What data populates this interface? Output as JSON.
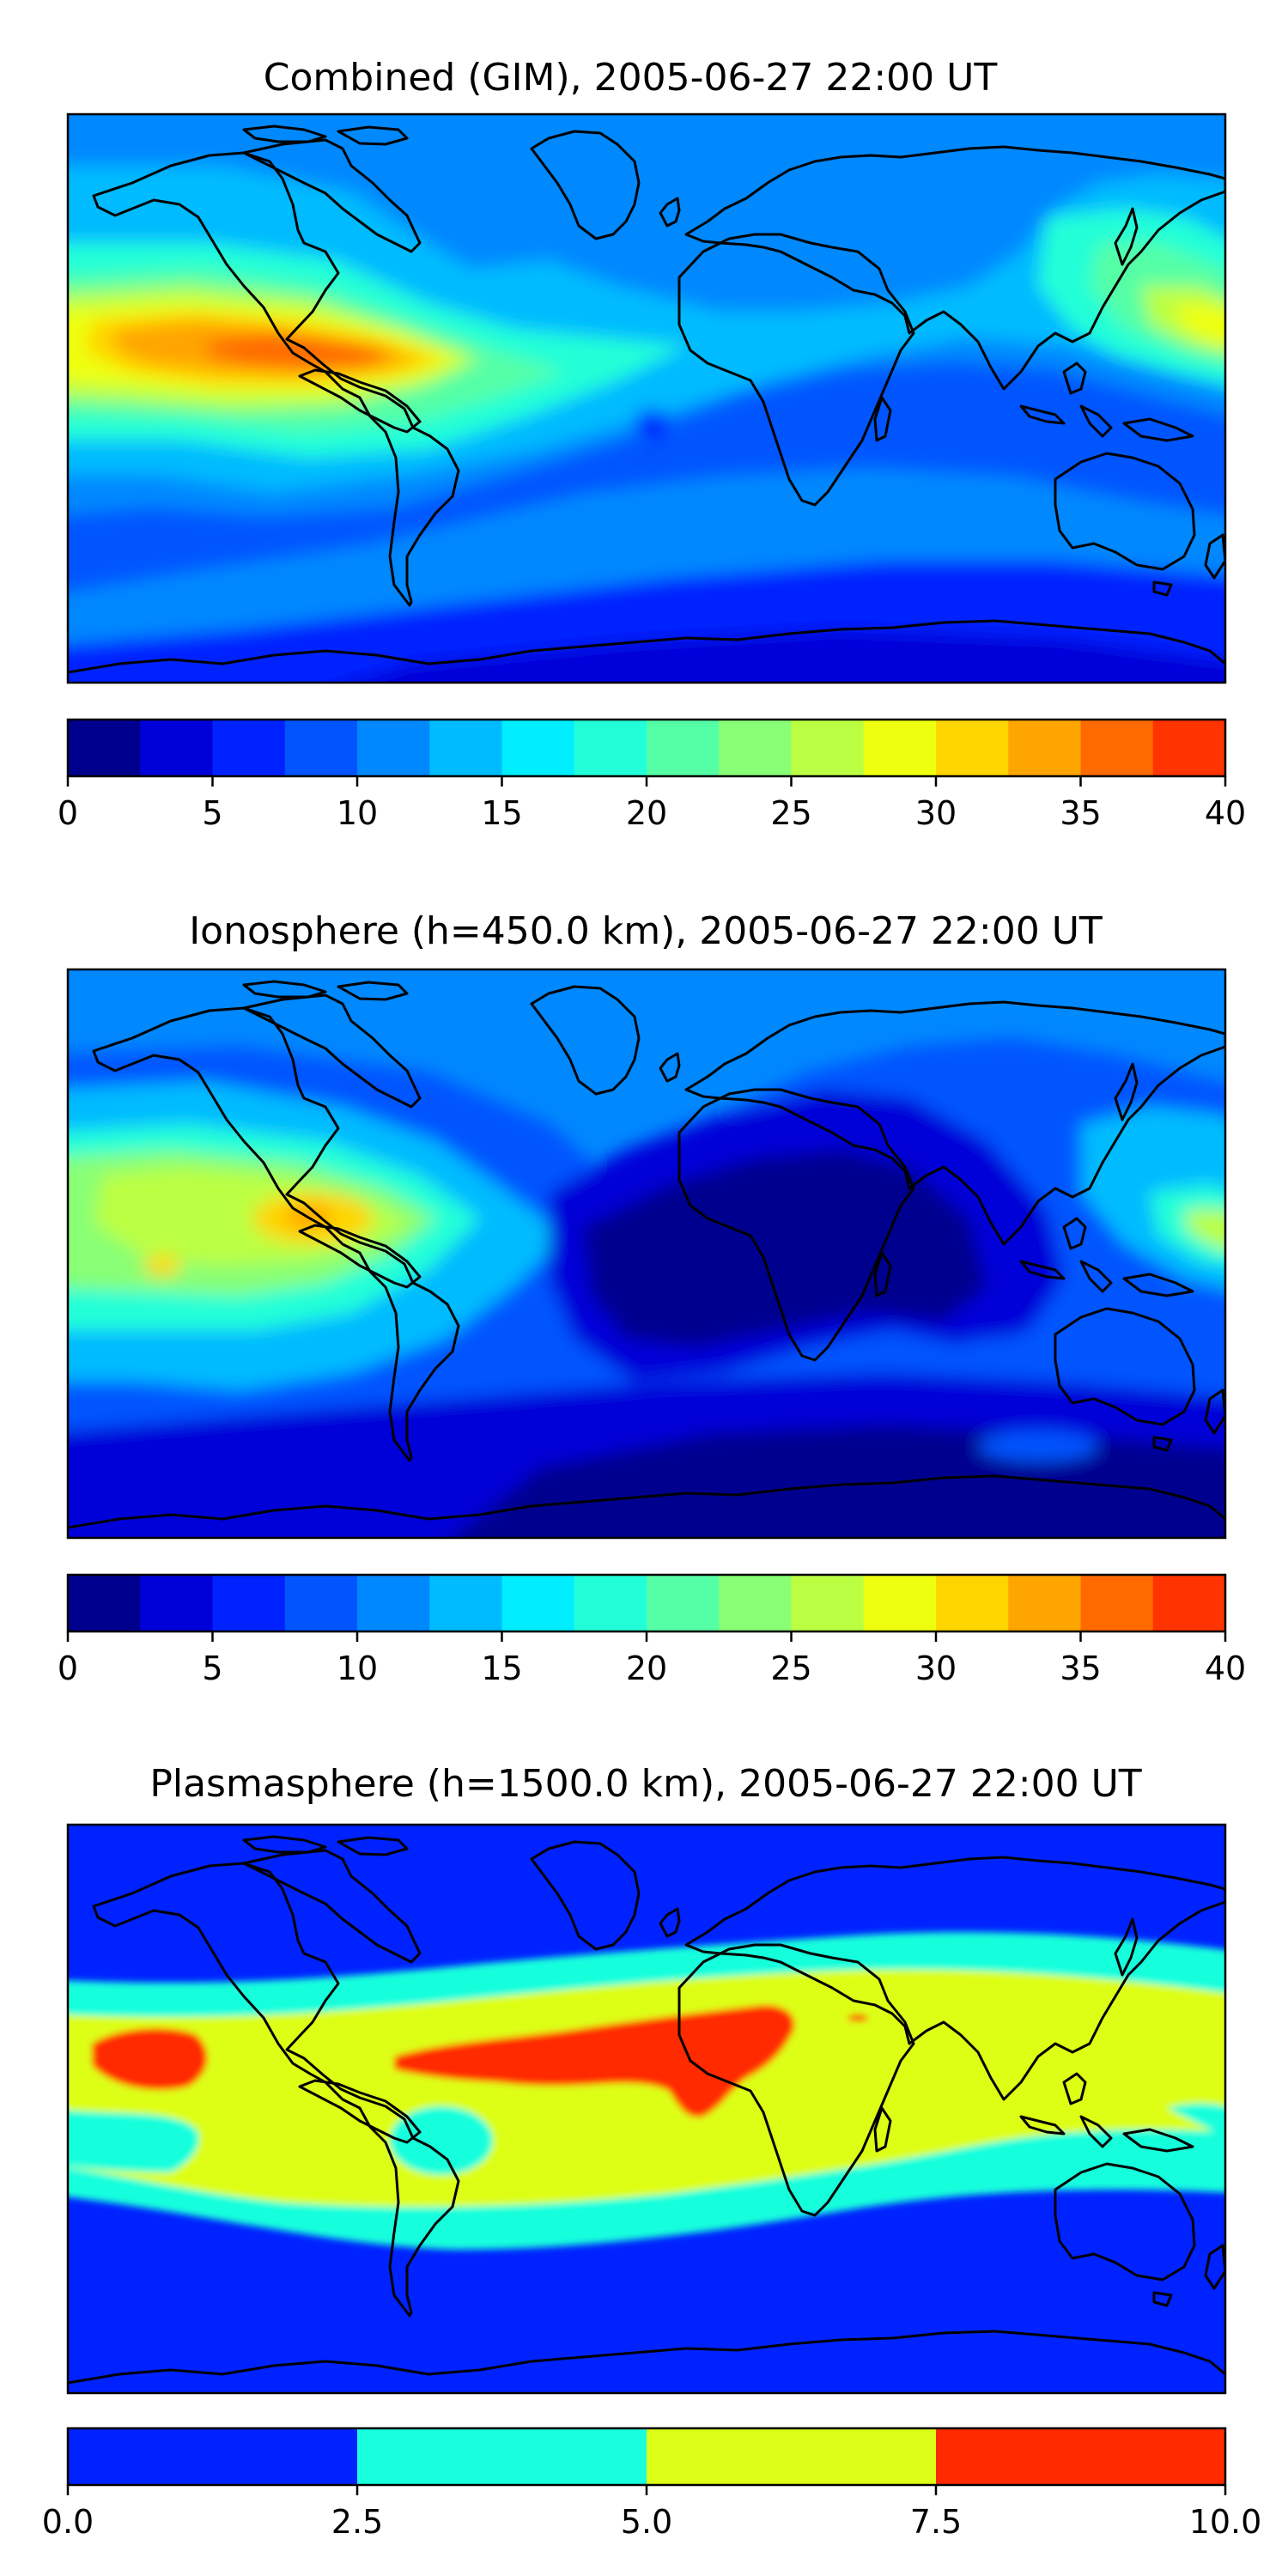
{
  "chart_data": [
    {
      "type": "heatmap",
      "title": "Combined (GIM), 2005-06-27 22:00 UT",
      "colorbar": {
        "boundaries": [
          0,
          2.5,
          5,
          7.5,
          10,
          12.5,
          15,
          17.5,
          20,
          22.5,
          25,
          27.5,
          30,
          32.5,
          35,
          37.5,
          40
        ],
        "colors": [
          "#00008f",
          "#0000d8",
          "#0022ff",
          "#0055ff",
          "#0088ff",
          "#00bbff",
          "#00eeff",
          "#22ffd8",
          "#55ffa6",
          "#88ff74",
          "#bbff42",
          "#eeff10",
          "#ffd500",
          "#ffa500",
          "#ff6a00",
          "#ff3400"
        ],
        "ticks": [
          0,
          5,
          10,
          15,
          20,
          25,
          30,
          35,
          40
        ],
        "tick_labels": [
          "0",
          "5",
          "10",
          "15",
          "20",
          "25",
          "30",
          "35",
          "40"
        ]
      },
      "fields": [
        {
          "color": "#0055ff"
        },
        {
          "color": "#0088ff"
        },
        {
          "color": "#00bbff"
        },
        {
          "color": "#22ffd8"
        },
        {
          "color": "#55ffa6"
        },
        {
          "color": "#bbff42"
        },
        {
          "color": "#eeff10"
        },
        {
          "color": "#ffd500"
        },
        {
          "color": "#ffa500"
        },
        {
          "color": "#ff6a00"
        },
        {
          "color": "#0022ff"
        },
        {
          "color": "#0000d8"
        }
      ]
    },
    {
      "type": "heatmap",
      "title": "Ionosphere  (h=450.0 km), 2005-06-27 22:00 UT",
      "colorbar": {
        "boundaries": [
          0,
          2.5,
          5,
          7.5,
          10,
          12.5,
          15,
          17.5,
          20,
          22.5,
          25,
          27.5,
          30,
          32.5,
          35,
          37.5,
          40
        ],
        "colors": [
          "#00008f",
          "#0000d8",
          "#0022ff",
          "#0055ff",
          "#0088ff",
          "#00bbff",
          "#00eeff",
          "#22ffd8",
          "#55ffa6",
          "#88ff74",
          "#bbff42",
          "#eeff10",
          "#ffd500",
          "#ffa500",
          "#ff6a00",
          "#ff3400"
        ],
        "ticks": [
          0,
          5,
          10,
          15,
          20,
          25,
          30,
          35,
          40
        ],
        "tick_labels": [
          "0",
          "5",
          "10",
          "15",
          "20",
          "25",
          "30",
          "35",
          "40"
        ]
      },
      "fields": [
        {
          "color": "#0088ff"
        },
        {
          "color": "#0055ff"
        },
        {
          "color": "#00bbff"
        },
        {
          "color": "#22ffd8"
        },
        {
          "color": "#88ff74"
        },
        {
          "color": "#bbff42"
        },
        {
          "color": "#ffd500"
        },
        {
          "color": "#ffa500"
        },
        {
          "color": "#0000d8"
        },
        {
          "color": "#00008f"
        }
      ]
    },
    {
      "type": "heatmap",
      "title": "Plasmasphere (h=1500.0 km), 2005-06-27 22:00 UT",
      "colorbar": {
        "boundaries": [
          0.0,
          2.5,
          5.0,
          7.5,
          10.0
        ],
        "colors": [
          "#0022ff",
          "#17ffdd",
          "#ddff17",
          "#ff2a00"
        ],
        "ticks": [
          0.0,
          2.5,
          5.0,
          7.5,
          10.0
        ],
        "tick_labels": [
          "0.0",
          "2.5",
          "5.0",
          "7.5",
          "10.0"
        ]
      },
      "fields": [
        {
          "color": "#0022ff"
        },
        {
          "color": "#17ffdd"
        },
        {
          "color": "#ddff17"
        },
        {
          "color": "#ff2a00"
        }
      ]
    }
  ]
}
